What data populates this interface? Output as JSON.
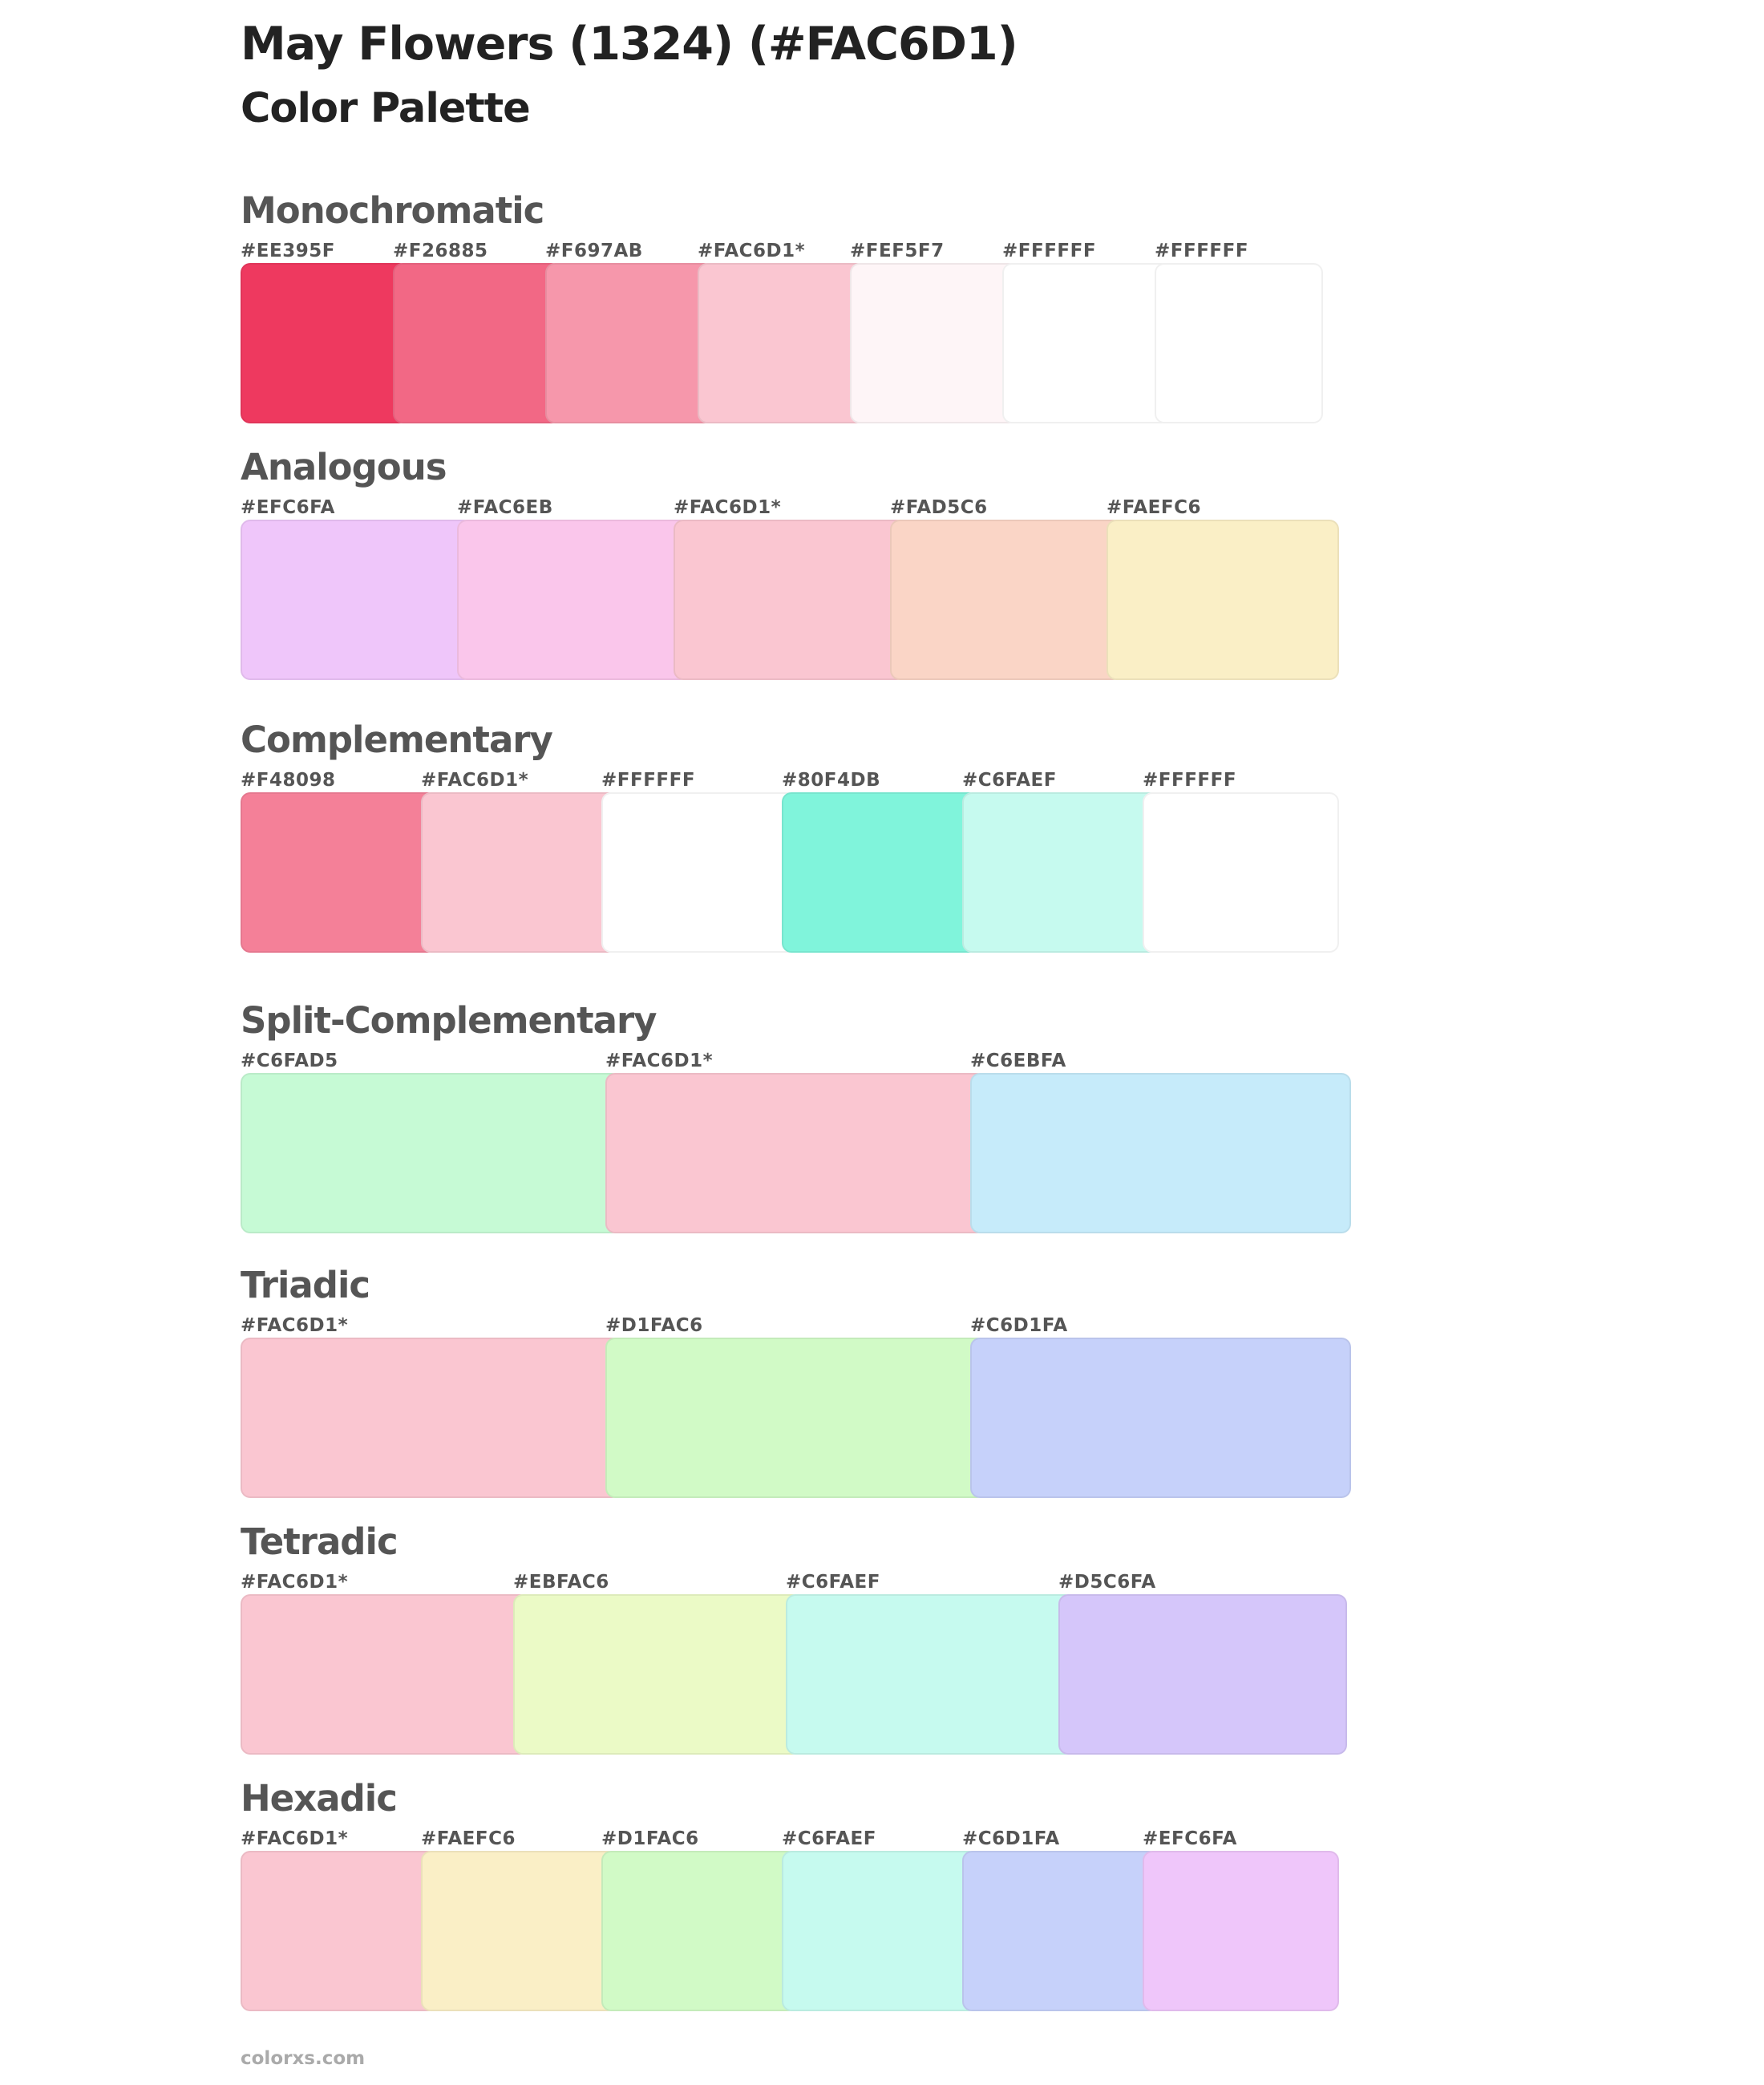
{
  "title": "May Flowers (1324) (#FAC6D1)",
  "subtitle": "Color Palette",
  "sections": [
    {
      "name": "Monochromatic",
      "colors": [
        {
          "label": "#EE395F",
          "hex": "#EE395F"
        },
        {
          "label": "#F26885",
          "hex": "#F26885"
        },
        {
          "label": "#F697AB",
          "hex": "#F697AB"
        },
        {
          "label": "#FAC6D1*",
          "hex": "#FAC6D1"
        },
        {
          "label": "#FEF5F7",
          "hex": "#FEF5F7"
        },
        {
          "label": "#FFFFFF",
          "hex": "#FFFFFF"
        },
        {
          "label": "#FFFFFF",
          "hex": "#FFFFFF"
        }
      ]
    },
    {
      "name": "Analogous",
      "colors": [
        {
          "label": "#EFC6FA",
          "hex": "#EFC6FA"
        },
        {
          "label": "#FAC6EB",
          "hex": "#FAC6EB"
        },
        {
          "label": "#FAC6D1*",
          "hex": "#FAC6D1"
        },
        {
          "label": "#FAD5C6",
          "hex": "#FAD5C6"
        },
        {
          "label": "#FAEFC6",
          "hex": "#FAEFC6"
        }
      ]
    },
    {
      "name": "Complementary",
      "colors": [
        {
          "label": "#F48098",
          "hex": "#F48098"
        },
        {
          "label": "#FAC6D1*",
          "hex": "#FAC6D1"
        },
        {
          "label": "#FFFFFF",
          "hex": "#FFFFFF"
        },
        {
          "label": "#80F4DB",
          "hex": "#80F4DB"
        },
        {
          "label": "#C6FAEF",
          "hex": "#C6FAEF"
        },
        {
          "label": "#FFFFFF",
          "hex": "#FFFFFF"
        }
      ]
    },
    {
      "name": "Split-Complementary",
      "colors": [
        {
          "label": "#C6FAD5",
          "hex": "#C6FAD5"
        },
        {
          "label": "#FAC6D1*",
          "hex": "#FAC6D1"
        },
        {
          "label": "#C6EBFA",
          "hex": "#C6EBFA"
        }
      ]
    },
    {
      "name": "Triadic",
      "colors": [
        {
          "label": "#FAC6D1*",
          "hex": "#FAC6D1"
        },
        {
          "label": "#D1FAC6",
          "hex": "#D1FAC6"
        },
        {
          "label": "#C6D1FA",
          "hex": "#C6D1FA"
        }
      ]
    },
    {
      "name": "Tetradic",
      "colors": [
        {
          "label": "#FAC6D1*",
          "hex": "#FAC6D1"
        },
        {
          "label": "#EBFAC6",
          "hex": "#EBFAC6"
        },
        {
          "label": "#C6FAEF",
          "hex": "#C6FAEF"
        },
        {
          "label": "#D5C6FA",
          "hex": "#D5C6FA"
        }
      ]
    },
    {
      "name": "Hexadic",
      "colors": [
        {
          "label": "#FAC6D1*",
          "hex": "#FAC6D1"
        },
        {
          "label": "#FAEFC6",
          "hex": "#FAEFC6"
        },
        {
          "label": "#D1FAC6",
          "hex": "#D1FAC6"
        },
        {
          "label": "#C6FAEF",
          "hex": "#C6FAEF"
        },
        {
          "label": "#C6D1FA",
          "hex": "#C6D1FA"
        },
        {
          "label": "#EFC6FA",
          "hex": "#EFC6FA"
        }
      ]
    }
  ],
  "footer": "colorxs.com"
}
